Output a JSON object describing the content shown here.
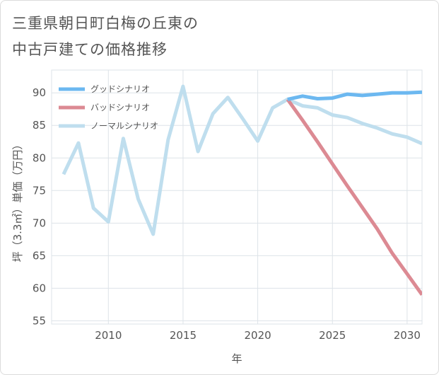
{
  "title": {
    "line1": "三重県朝日町白梅の丘東の",
    "line2": "中古戸建ての価格推移"
  },
  "colors": {
    "good": "#6cb8f0",
    "bad": "#dc8a93",
    "normal": "#bfdeee",
    "grid": "#dde3e8",
    "axis": "#555555"
  },
  "chart_data": {
    "type": "line",
    "xlabel": "年",
    "ylabel": "坪（3.3㎡）単価（万円）",
    "xlim": [
      2006.2,
      2031
    ],
    "ylim": [
      54.5,
      93.5
    ],
    "xticks": [
      2010,
      2015,
      2020,
      2025,
      2030
    ],
    "yticks": [
      55,
      60,
      65,
      70,
      75,
      80,
      85,
      90
    ],
    "grid": true,
    "legend_position": "top-left",
    "series": [
      {
        "name": "グッドシナリオ",
        "color_key": "good",
        "x": [
          2022,
          2023,
          2024,
          2025,
          2026,
          2027,
          2028,
          2029,
          2030,
          2031
        ],
        "y": [
          89.0,
          89.5,
          89.1,
          89.2,
          89.8,
          89.6,
          89.8,
          90.0,
          90.0,
          90.1
        ]
      },
      {
        "name": "バッドシナリオ",
        "color_key": "bad",
        "x": [
          2022,
          2023,
          2024,
          2025,
          2026,
          2027,
          2028,
          2029,
          2030,
          2031
        ],
        "y": [
          89.0,
          85.8,
          82.5,
          79.1,
          75.7,
          72.4,
          69.1,
          65.4,
          62.2,
          59.0
        ]
      },
      {
        "name": "ノーマルシナリオ",
        "color_key": "normal",
        "x": [
          2007,
          2008,
          2009,
          2010,
          2011,
          2012,
          2013,
          2014,
          2015,
          2016,
          2017,
          2018,
          2019,
          2020,
          2021,
          2022,
          2023,
          2024,
          2025,
          2026,
          2027,
          2028,
          2029,
          2030,
          2031
        ],
        "y": [
          77.5,
          82.3,
          72.3,
          70.2,
          83.0,
          73.7,
          68.3,
          82.8,
          91.0,
          81.0,
          86.8,
          89.3,
          86.0,
          82.6,
          87.7,
          89.0,
          88.0,
          87.7,
          86.6,
          86.2,
          85.3,
          84.6,
          83.7,
          83.2,
          82.2
        ]
      }
    ]
  }
}
